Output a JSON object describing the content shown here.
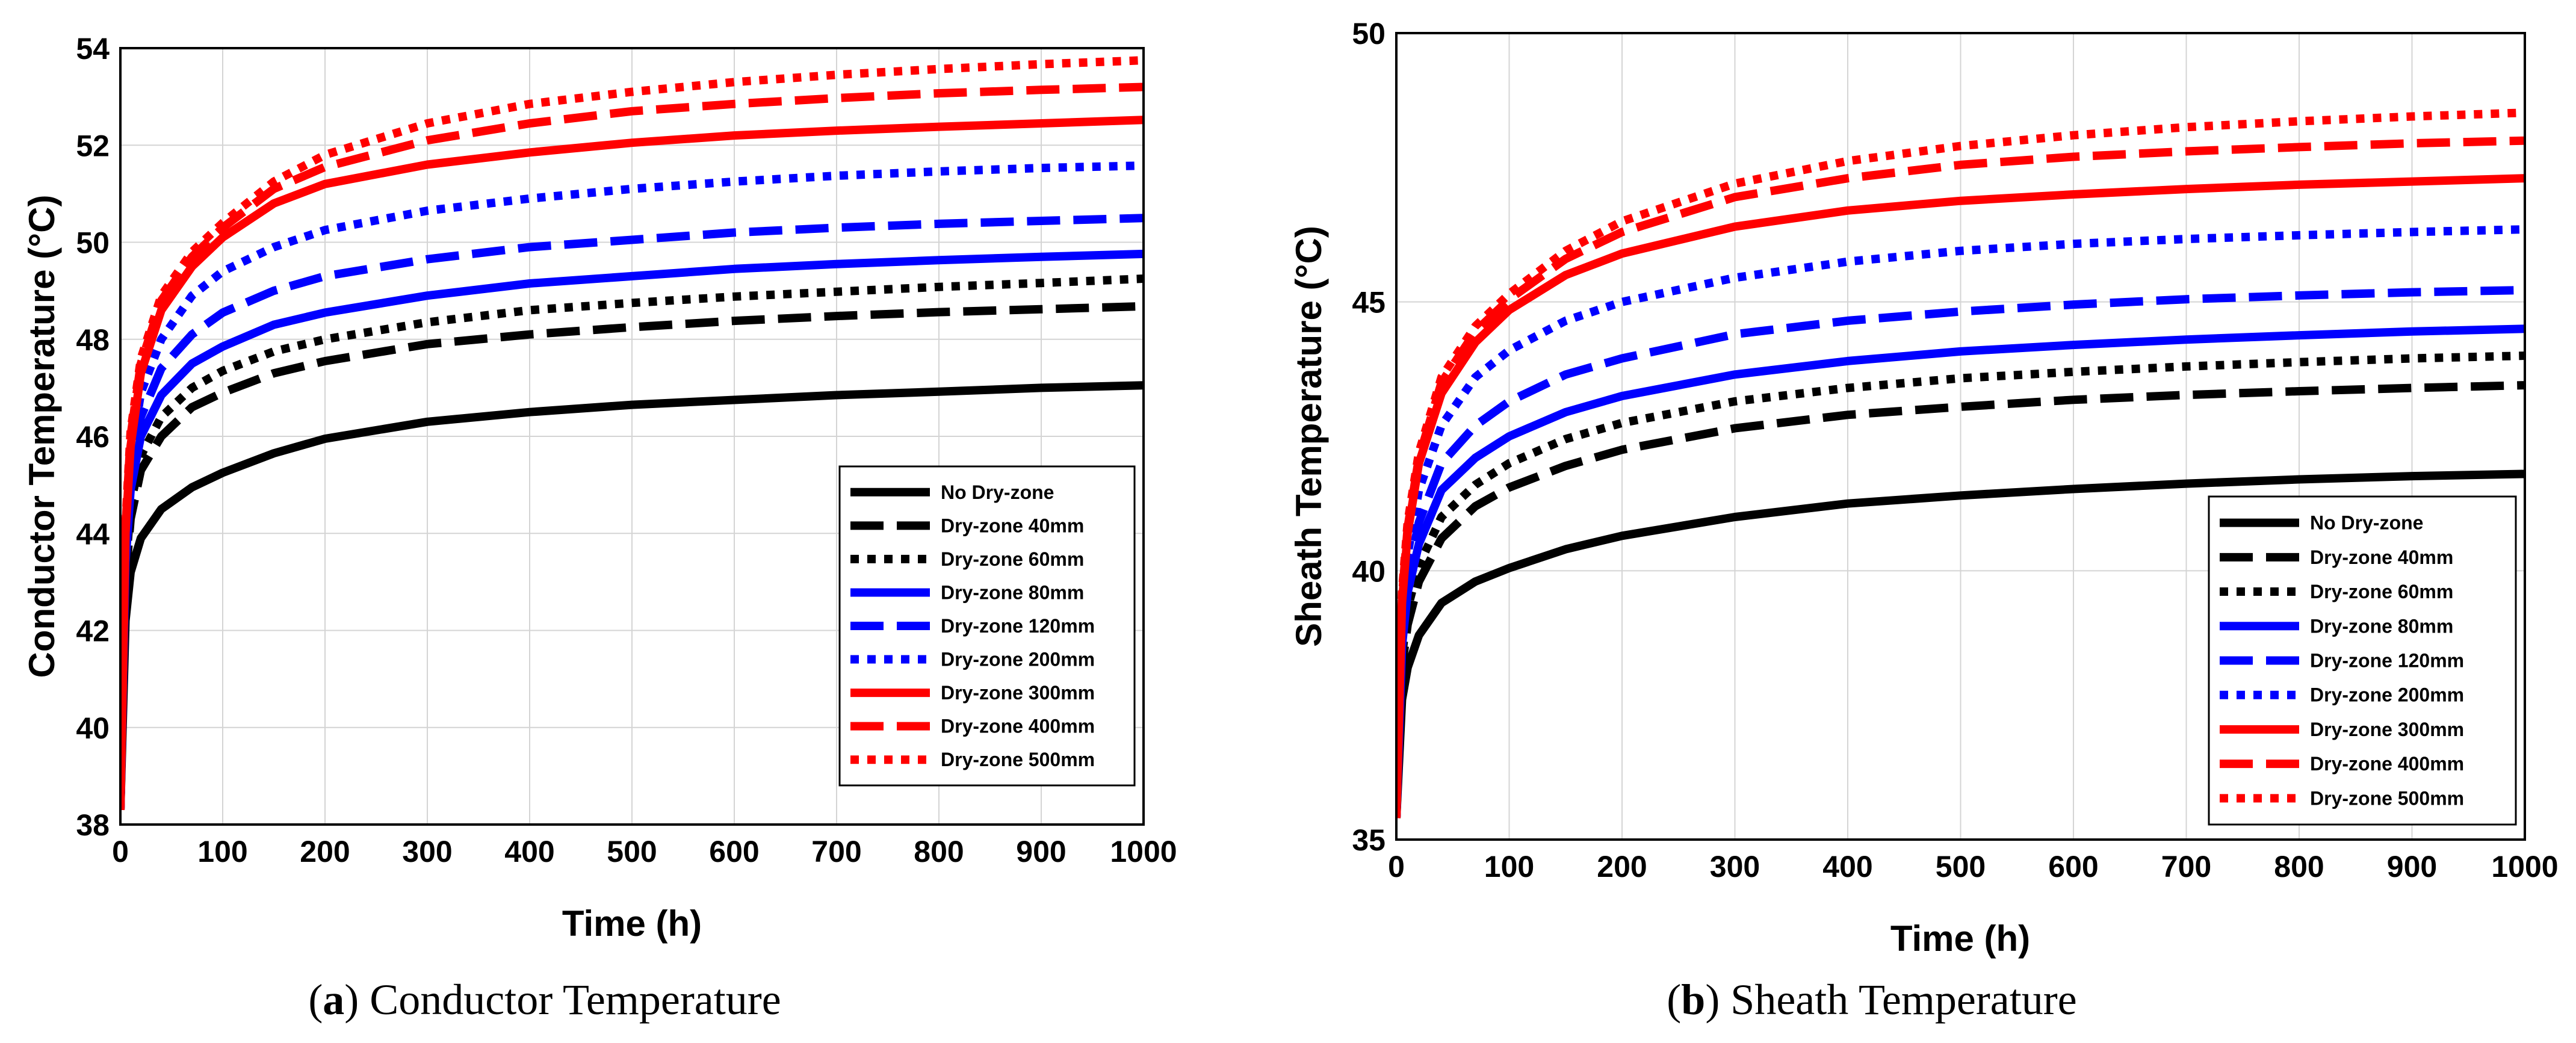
{
  "figure": {
    "panel_a": {
      "label": "a",
      "caption": "Conductor Temperature"
    },
    "panel_b": {
      "label": "b",
      "caption": "Sheath Temperature"
    }
  },
  "chart_data": [
    {
      "type": "line",
      "title": "",
      "xlabel": "Time (h)",
      "ylabel": "Conductor Temperature (°C)",
      "xlim": [
        0,
        1000
      ],
      "ylim": [
        38,
        54
      ],
      "xticks": [
        0,
        100,
        200,
        300,
        400,
        500,
        600,
        700,
        800,
        900,
        1000
      ],
      "yticks": [
        38,
        40,
        42,
        44,
        46,
        48,
        50,
        52,
        54
      ],
      "grid": true,
      "legend_position": "bottom-right",
      "x": [
        0,
        5,
        10,
        20,
        40,
        70,
        100,
        150,
        200,
        300,
        400,
        500,
        600,
        700,
        800,
        900,
        1000
      ],
      "series": [
        {
          "name": "No Dry-zone",
          "color": "#000000",
          "dash": "solid",
          "values": [
            38.3,
            42.2,
            43.2,
            43.9,
            44.5,
            44.95,
            45.25,
            45.65,
            45.95,
            46.3,
            46.5,
            46.65,
            46.75,
            46.85,
            46.92,
            47.0,
            47.05
          ]
        },
        {
          "name": "Dry-zone 40mm",
          "color": "#000000",
          "dash": "dash",
          "values": [
            38.3,
            43.0,
            44.3,
            45.3,
            46.0,
            46.6,
            46.9,
            47.3,
            47.55,
            47.9,
            48.1,
            48.25,
            48.38,
            48.48,
            48.56,
            48.62,
            48.68
          ]
        },
        {
          "name": "Dry-zone 60mm",
          "color": "#000000",
          "dash": "dot",
          "values": [
            38.3,
            43.2,
            44.6,
            45.6,
            46.4,
            47.0,
            47.35,
            47.75,
            48.0,
            48.35,
            48.6,
            48.75,
            48.88,
            48.98,
            49.08,
            49.16,
            49.25
          ]
        },
        {
          "name": "Dry-zone 80mm",
          "color": "#0000ff",
          "dash": "solid",
          "values": [
            38.3,
            43.4,
            44.9,
            46.0,
            46.85,
            47.5,
            47.85,
            48.3,
            48.55,
            48.9,
            49.15,
            49.3,
            49.45,
            49.55,
            49.63,
            49.7,
            49.76
          ]
        },
        {
          "name": "Dry-zone 120mm",
          "color": "#0000ff",
          "dash": "dash",
          "values": [
            38.3,
            43.6,
            45.2,
            46.4,
            47.4,
            48.1,
            48.55,
            49.0,
            49.3,
            49.65,
            49.9,
            50.05,
            50.2,
            50.3,
            50.38,
            50.44,
            50.5
          ]
        },
        {
          "name": "Dry-zone 200mm",
          "color": "#0000ff",
          "dash": "dot",
          "values": [
            38.3,
            43.8,
            45.5,
            46.9,
            48.0,
            48.9,
            49.4,
            49.9,
            50.25,
            50.65,
            50.9,
            51.1,
            51.25,
            51.37,
            51.46,
            51.53,
            51.58
          ]
        },
        {
          "name": "Dry-zone 300mm",
          "color": "#ff0000",
          "dash": "solid",
          "values": [
            38.3,
            44.0,
            45.8,
            47.3,
            48.6,
            49.5,
            50.1,
            50.8,
            51.2,
            51.6,
            51.85,
            52.05,
            52.2,
            52.3,
            52.38,
            52.45,
            52.52
          ]
        },
        {
          "name": "Dry-zone 400mm",
          "color": "#ff0000",
          "dash": "dash",
          "values": [
            38.3,
            44.1,
            46.0,
            47.5,
            48.8,
            49.7,
            50.3,
            51.1,
            51.55,
            52.1,
            52.45,
            52.7,
            52.85,
            52.97,
            53.07,
            53.14,
            53.2
          ]
        },
        {
          "name": "Dry-zone 500mm",
          "color": "#ff0000",
          "dash": "dot",
          "values": [
            38.3,
            44.2,
            46.1,
            47.6,
            48.9,
            49.8,
            50.4,
            51.25,
            51.8,
            52.45,
            52.85,
            53.1,
            53.3,
            53.45,
            53.57,
            53.67,
            53.75
          ]
        }
      ]
    },
    {
      "type": "line",
      "title": "",
      "xlabel": "Time (h)",
      "ylabel": "Sheath Temperature (°C)",
      "xlim": [
        0,
        1000
      ],
      "ylim": [
        35,
        50
      ],
      "xticks": [
        0,
        100,
        200,
        300,
        400,
        500,
        600,
        700,
        800,
        900,
        1000
      ],
      "yticks": [
        35,
        40,
        45,
        50
      ],
      "grid": true,
      "legend_position": "bottom-right",
      "x": [
        0,
        5,
        10,
        20,
        40,
        70,
        100,
        150,
        200,
        300,
        400,
        500,
        600,
        700,
        800,
        900,
        1000
      ],
      "series": [
        {
          "name": "No Dry-zone",
          "color": "#000000",
          "dash": "solid",
          "values": [
            35.4,
            37.6,
            38.2,
            38.8,
            39.4,
            39.8,
            40.05,
            40.4,
            40.65,
            41.0,
            41.25,
            41.4,
            41.52,
            41.62,
            41.7,
            41.76,
            41.8
          ]
        },
        {
          "name": "Dry-zone 40mm",
          "color": "#000000",
          "dash": "dash",
          "values": [
            35.4,
            38.2,
            39.0,
            39.8,
            40.6,
            41.2,
            41.55,
            41.95,
            42.25,
            42.65,
            42.9,
            43.05,
            43.18,
            43.27,
            43.34,
            43.4,
            43.45
          ]
        },
        {
          "name": "Dry-zone 60mm",
          "color": "#000000",
          "dash": "dot",
          "values": [
            35.4,
            38.4,
            39.3,
            40.1,
            41.0,
            41.6,
            42.0,
            42.45,
            42.75,
            43.15,
            43.4,
            43.58,
            43.7,
            43.8,
            43.88,
            43.95,
            44.0
          ]
        },
        {
          "name": "Dry-zone 80mm",
          "color": "#0000ff",
          "dash": "solid",
          "values": [
            35.4,
            38.6,
            39.6,
            40.5,
            41.5,
            42.1,
            42.5,
            42.95,
            43.25,
            43.65,
            43.9,
            44.08,
            44.2,
            44.3,
            44.38,
            44.45,
            44.5
          ]
        },
        {
          "name": "Dry-zone 120mm",
          "color": "#0000ff",
          "dash": "dash",
          "values": [
            35.4,
            38.8,
            39.9,
            40.9,
            42.0,
            42.7,
            43.15,
            43.65,
            43.95,
            44.4,
            44.65,
            44.82,
            44.95,
            45.05,
            45.12,
            45.18,
            45.22
          ]
        },
        {
          "name": "Dry-zone 200mm",
          "color": "#0000ff",
          "dash": "dot",
          "values": [
            35.4,
            39.1,
            40.3,
            41.5,
            42.7,
            43.6,
            44.1,
            44.65,
            45.0,
            45.45,
            45.75,
            45.95,
            46.08,
            46.17,
            46.24,
            46.3,
            46.35
          ]
        },
        {
          "name": "Dry-zone 300mm",
          "color": "#ff0000",
          "dash": "solid",
          "values": [
            35.4,
            39.4,
            40.7,
            42.0,
            43.3,
            44.25,
            44.85,
            45.5,
            45.9,
            46.4,
            46.7,
            46.88,
            47.0,
            47.1,
            47.18,
            47.24,
            47.3
          ]
        },
        {
          "name": "Dry-zone 400mm",
          "color": "#ff0000",
          "dash": "dash",
          "values": [
            35.4,
            39.5,
            40.8,
            42.1,
            43.5,
            44.45,
            45.05,
            45.8,
            46.3,
            46.95,
            47.3,
            47.55,
            47.7,
            47.8,
            47.88,
            47.95,
            48.0
          ]
        },
        {
          "name": "Dry-zone 500mm",
          "color": "#ff0000",
          "dash": "dot",
          "values": [
            35.4,
            39.6,
            40.9,
            42.2,
            43.6,
            44.55,
            45.15,
            45.95,
            46.5,
            47.2,
            47.62,
            47.9,
            48.1,
            48.25,
            48.36,
            48.45,
            48.52
          ]
        }
      ]
    }
  ]
}
